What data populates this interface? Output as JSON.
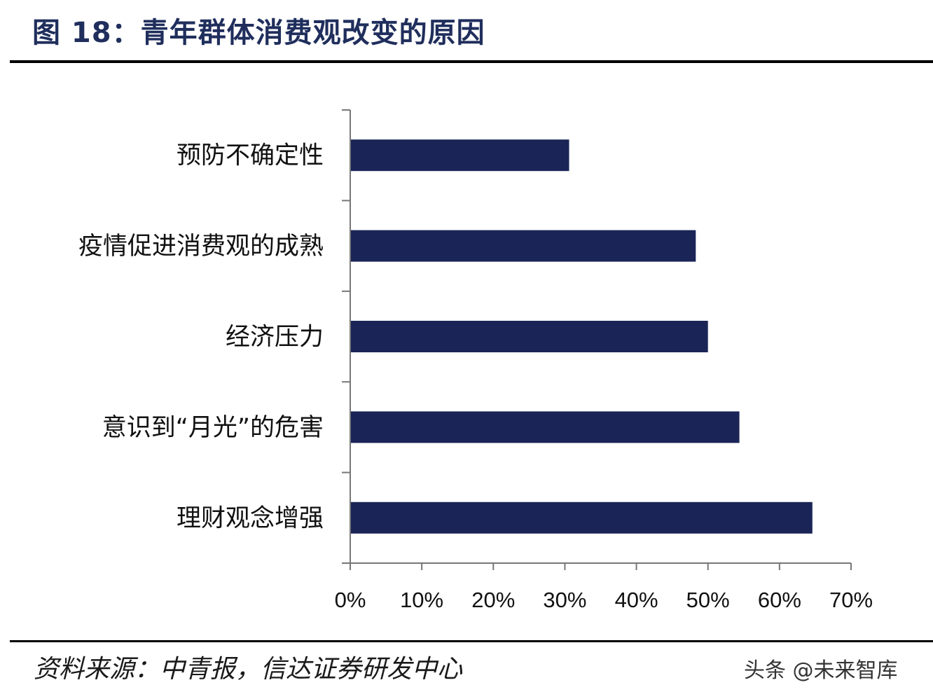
{
  "header": {
    "title": "图 18：青年群体消费观改变的原因"
  },
  "footer": {
    "source": "资料来源：中青报，信达证券研发中心",
    "watermark": "头条 @未来智库"
  },
  "colors": {
    "bar": "#1a2456",
    "title": "#1f2e5c",
    "axis": "#777777"
  },
  "chart_data": {
    "type": "bar",
    "orientation": "horizontal",
    "categories": [
      "预防不确定性",
      "疫情促进消费观的成熟",
      "经济压力",
      "意识到“月光”的危害",
      "理财观念增强"
    ],
    "values": [
      30.5,
      48.2,
      49.9,
      54.3,
      64.5
    ],
    "xlim": [
      0,
      70
    ],
    "xticks": [
      "0%",
      "10%",
      "20%",
      "30%",
      "40%",
      "50%",
      "60%",
      "70%"
    ],
    "unit": "%",
    "grid": false,
    "legend": "none"
  }
}
